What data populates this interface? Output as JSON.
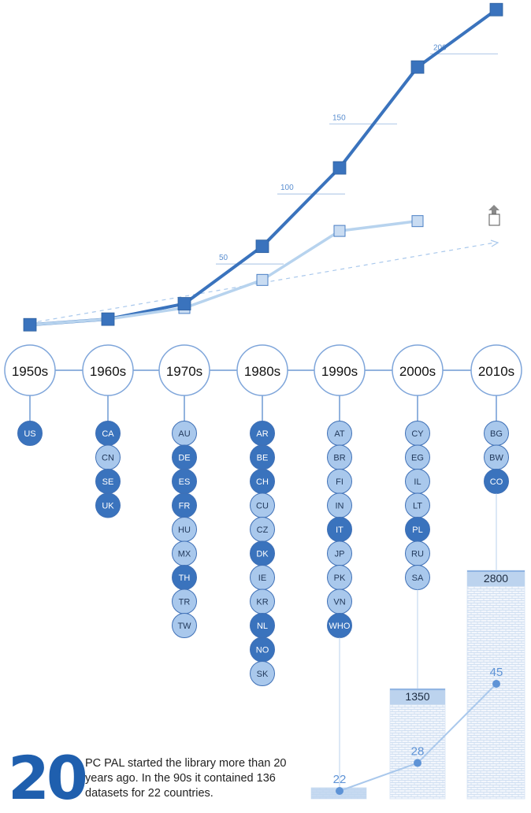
{
  "colors": {
    "dark": "#3a73bd",
    "light": "#a9c8ec",
    "pale": "#c9dcf2",
    "bar_label": "#bcd3ee",
    "line_light": "#b7d3ee"
  },
  "chart_data": {
    "type": "line",
    "x_categories": [
      "1950s",
      "1960s",
      "1970s",
      "1980s",
      "1990s",
      "2000s",
      "2010s"
    ],
    "ylim": [
      0,
      225
    ],
    "y_gridlines": [
      50,
      100,
      150,
      200
    ],
    "series": [
      {
        "style": "dark",
        "values": [
          1,
          5,
          16,
          57,
          113,
          185,
          226
        ]
      },
      {
        "style": "light",
        "values": [
          1,
          5,
          13,
          33,
          68,
          75
        ]
      }
    ],
    "trend_line": {
      "style": "dashed",
      "direction": "rising"
    },
    "end_marker_icon": "up-arrow-box-icon"
  },
  "decades": [
    {
      "label": "1950s",
      "countries": [
        {
          "code": "US",
          "tone": "dark"
        }
      ]
    },
    {
      "label": "1960s",
      "countries": [
        {
          "code": "CA",
          "tone": "dark"
        },
        {
          "code": "CN",
          "tone": "light"
        },
        {
          "code": "SE",
          "tone": "dark"
        },
        {
          "code": "UK",
          "tone": "dark"
        }
      ]
    },
    {
      "label": "1970s",
      "countries": [
        {
          "code": "AU",
          "tone": "light"
        },
        {
          "code": "DE",
          "tone": "dark"
        },
        {
          "code": "ES",
          "tone": "dark"
        },
        {
          "code": "FR",
          "tone": "dark"
        },
        {
          "code": "HU",
          "tone": "light"
        },
        {
          "code": "MX",
          "tone": "light"
        },
        {
          "code": "TH",
          "tone": "dark"
        },
        {
          "code": "TR",
          "tone": "light"
        },
        {
          "code": "TW",
          "tone": "light"
        }
      ]
    },
    {
      "label": "1980s",
      "countries": [
        {
          "code": "AR",
          "tone": "dark"
        },
        {
          "code": "BE",
          "tone": "dark"
        },
        {
          "code": "CH",
          "tone": "dark"
        },
        {
          "code": "CU",
          "tone": "light"
        },
        {
          "code": "CZ",
          "tone": "light"
        },
        {
          "code": "DK",
          "tone": "dark"
        },
        {
          "code": "IE",
          "tone": "light"
        },
        {
          "code": "KR",
          "tone": "light"
        },
        {
          "code": "NL",
          "tone": "dark"
        },
        {
          "code": "NO",
          "tone": "dark"
        },
        {
          "code": "SK",
          "tone": "light"
        }
      ]
    },
    {
      "label": "1990s",
      "countries": [
        {
          "code": "AT",
          "tone": "light"
        },
        {
          "code": "BR",
          "tone": "light"
        },
        {
          "code": "FI",
          "tone": "light"
        },
        {
          "code": "IN",
          "tone": "light"
        },
        {
          "code": "IT",
          "tone": "dark"
        },
        {
          "code": "JP",
          "tone": "light"
        },
        {
          "code": "PK",
          "tone": "light"
        },
        {
          "code": "VN",
          "tone": "light"
        },
        {
          "code": "WHO",
          "tone": "dark"
        }
      ]
    },
    {
      "label": "2000s",
      "countries": [
        {
          "code": "CY",
          "tone": "light"
        },
        {
          "code": "EG",
          "tone": "light"
        },
        {
          "code": "IL",
          "tone": "light"
        },
        {
          "code": "LT",
          "tone": "light"
        },
        {
          "code": "PL",
          "tone": "dark"
        },
        {
          "code": "RU",
          "tone": "light"
        },
        {
          "code": "SA",
          "tone": "light"
        }
      ]
    },
    {
      "label": "2010s",
      "countries": [
        {
          "code": "BG",
          "tone": "light"
        },
        {
          "code": "BW",
          "tone": "light"
        },
        {
          "code": "CO",
          "tone": "dark"
        }
      ]
    }
  ],
  "datasets_bars": [
    {
      "decade": "1990s",
      "value": 136,
      "label": ""
    },
    {
      "decade": "2000s",
      "value": 1350,
      "label": "1350"
    },
    {
      "decade": "2010s",
      "value": 2800,
      "label": "2800"
    }
  ],
  "country_counts": [
    {
      "decade": "1990s",
      "value": 22,
      "label": "22"
    },
    {
      "decade": "2000s",
      "value": 28,
      "label": "28"
    },
    {
      "decade": "2010s",
      "value": 45,
      "label": "45"
    }
  ],
  "intro": {
    "big_number": "20",
    "text": "PC PAL started the library more than 20 years ago. In the 90s it contained 136 datasets for 22 countries."
  }
}
